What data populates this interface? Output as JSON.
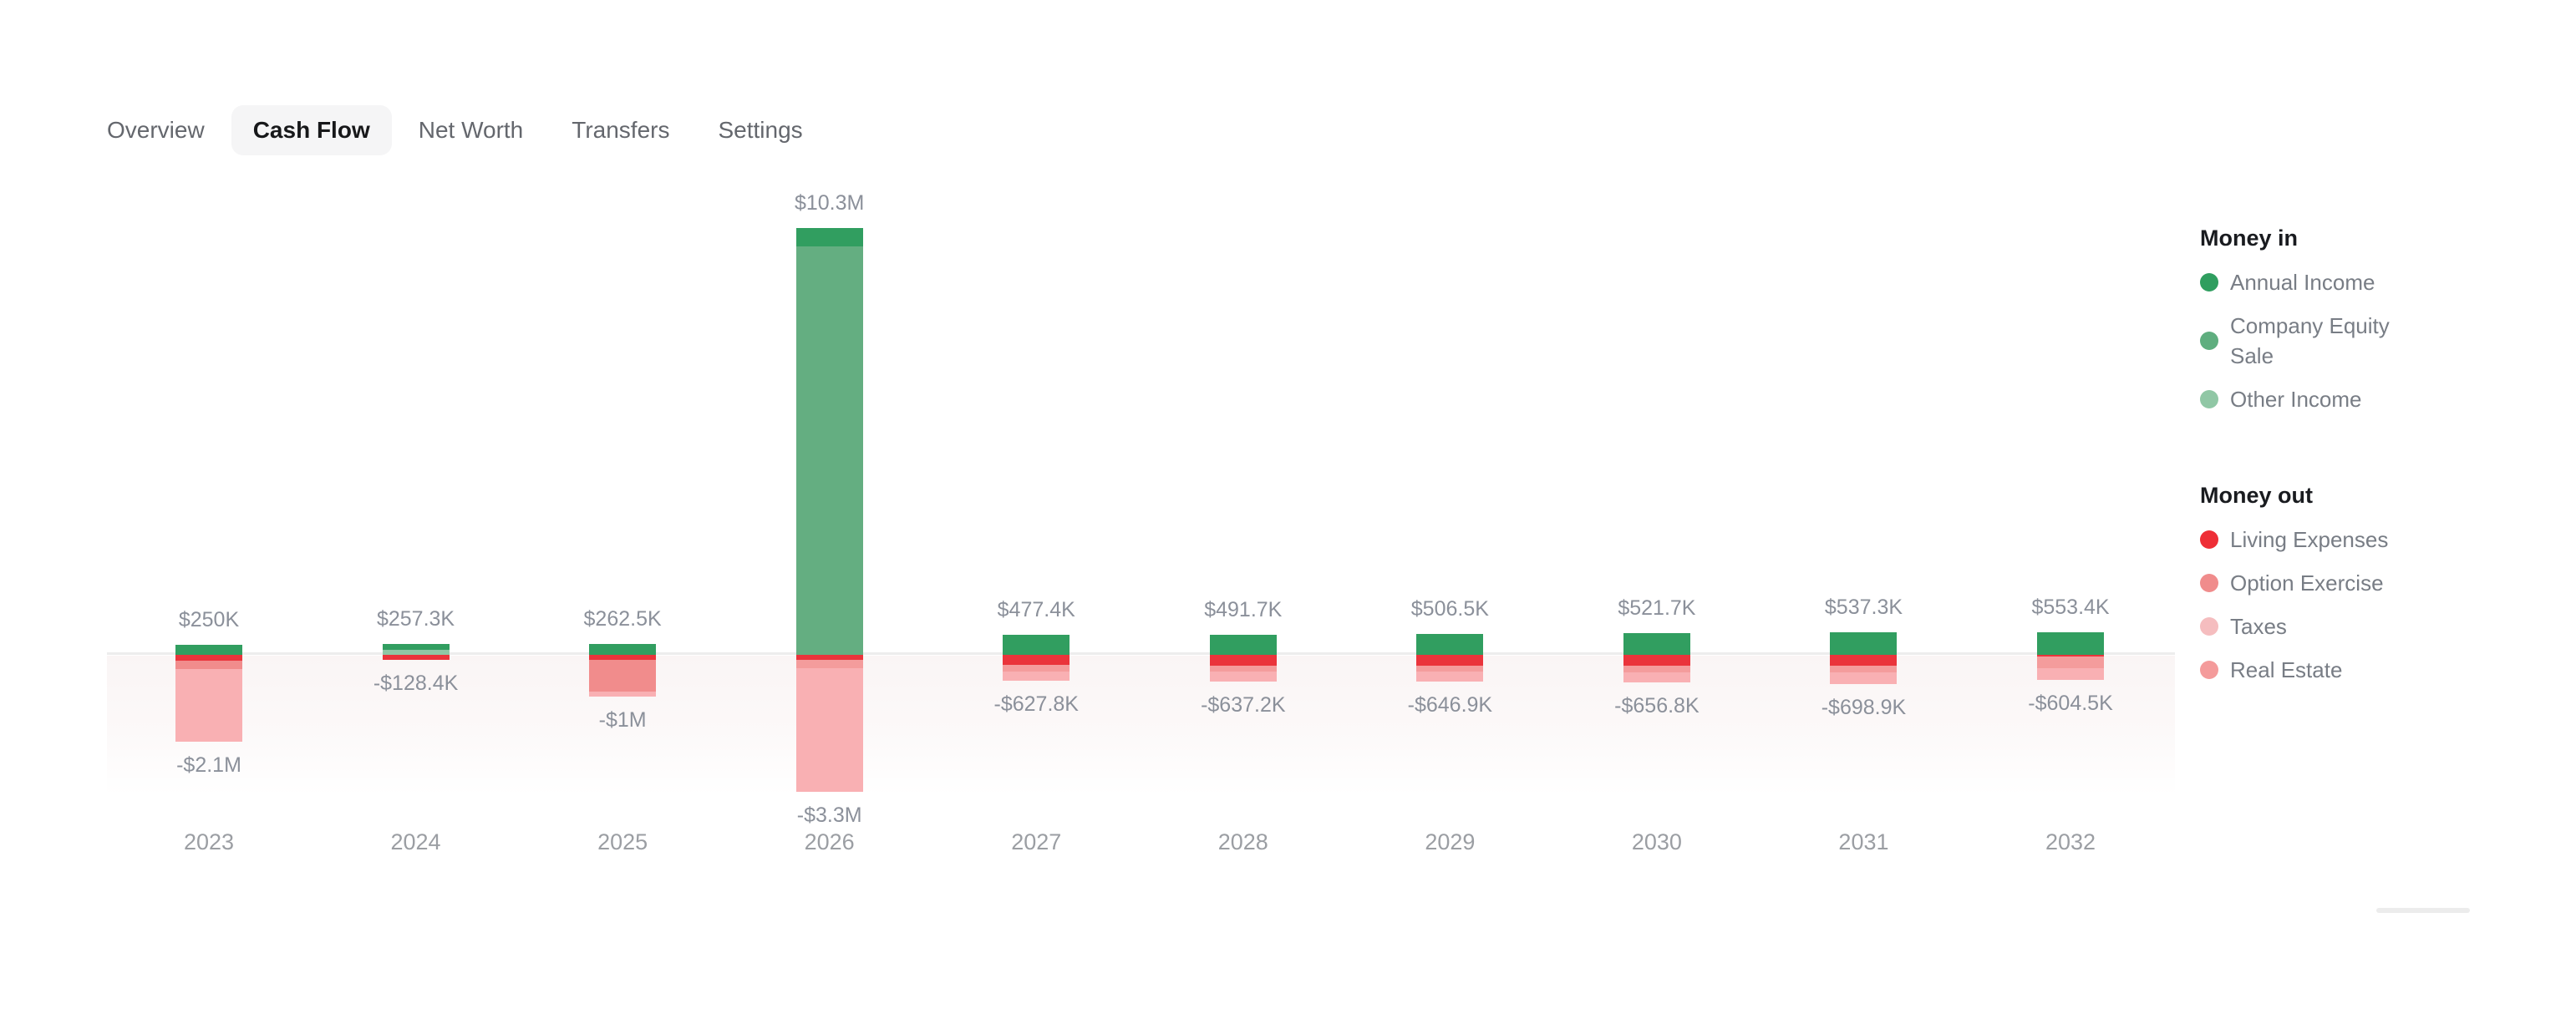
{
  "tabs": {
    "items": [
      {
        "id": "overview",
        "label": "Overview",
        "active": false
      },
      {
        "id": "cash-flow",
        "label": "Cash Flow",
        "active": true
      },
      {
        "id": "net-worth",
        "label": "Net Worth",
        "active": false
      },
      {
        "id": "transfers",
        "label": "Transfers",
        "active": false
      },
      {
        "id": "settings",
        "label": "Settings",
        "active": false
      }
    ]
  },
  "chart_data": {
    "type": "bar",
    "subtype": "diverging-stacked",
    "unit": "USD (values in thousands)",
    "grid": "off",
    "x": [
      "2023",
      "2024",
      "2025",
      "2026",
      "2027",
      "2028",
      "2029",
      "2030",
      "2031",
      "2032"
    ],
    "series_in": [
      "Annual Income",
      "Company Equity Sale",
      "Other Income"
    ],
    "series_out": [
      "Living Expenses",
      "Option Exercise",
      "Real Estate",
      "Taxes"
    ],
    "series_colors": {
      "annual_income": "#319e60",
      "company_equity_sale": "#64ae81",
      "other_income": "#8fc7a5",
      "living_expenses": "#ea343b",
      "option_exercise": "#f18c8c",
      "taxes": "#f9b0b3",
      "real_estate": "#f49c9c"
    },
    "years": [
      {
        "year": "2023",
        "in_label": "$250K",
        "out_label": "-$2.1M",
        "in": [
          {
            "series": "annual_income",
            "value_k": 250
          }
        ],
        "out": [
          {
            "series": "living_expenses",
            "value_k": 140
          },
          {
            "series": "option_exercise",
            "value_k": 200
          },
          {
            "series": "taxes",
            "value_k": 1760
          }
        ]
      },
      {
        "year": "2024",
        "in_label": "$257.3K",
        "out_label": "-$128.4K",
        "in": [
          {
            "series": "annual_income",
            "value_k": 130
          },
          {
            "series": "other_income",
            "value_k": 127.3
          }
        ],
        "out": [
          {
            "series": "living_expenses",
            "value_k": 128.4
          }
        ]
      },
      {
        "year": "2025",
        "in_label": "$262.5K",
        "out_label": "-$1M",
        "in": [
          {
            "series": "annual_income",
            "value_k": 262.5
          }
        ],
        "out": [
          {
            "series": "living_expenses",
            "value_k": 115
          },
          {
            "series": "option_exercise",
            "value_k": 765
          },
          {
            "series": "taxes",
            "value_k": 120
          }
        ]
      },
      {
        "year": "2026",
        "in_label": "$10.3M",
        "out_label": "-$3.3M",
        "in": [
          {
            "series": "annual_income",
            "value_k": 440
          },
          {
            "series": "company_equity_sale",
            "value_k": 9860
          }
        ],
        "out": [
          {
            "series": "living_expenses",
            "value_k": 120
          },
          {
            "series": "real_estate",
            "value_k": 200
          },
          {
            "series": "taxes",
            "value_k": 2980
          }
        ]
      },
      {
        "year": "2027",
        "in_label": "$477.4K",
        "out_label": "-$627.8K",
        "in": [
          {
            "series": "annual_income",
            "value_k": 477.4
          }
        ],
        "out": [
          {
            "series": "living_expenses",
            "value_k": 250
          },
          {
            "series": "real_estate",
            "value_k": 150
          },
          {
            "series": "taxes",
            "value_k": 227.8
          }
        ]
      },
      {
        "year": "2028",
        "in_label": "$491.7K",
        "out_label": "-$637.2K",
        "in": [
          {
            "series": "annual_income",
            "value_k": 491.7
          }
        ],
        "out": [
          {
            "series": "living_expenses",
            "value_k": 255
          },
          {
            "series": "real_estate",
            "value_k": 150
          },
          {
            "series": "taxes",
            "value_k": 232.2
          }
        ]
      },
      {
        "year": "2029",
        "in_label": "$506.5K",
        "out_label": "-$646.9K",
        "in": [
          {
            "series": "annual_income",
            "value_k": 506.5
          }
        ],
        "out": [
          {
            "series": "living_expenses",
            "value_k": 260
          },
          {
            "series": "real_estate",
            "value_k": 150
          },
          {
            "series": "taxes",
            "value_k": 236.9
          }
        ]
      },
      {
        "year": "2030",
        "in_label": "$521.7K",
        "out_label": "-$656.8K",
        "in": [
          {
            "series": "annual_income",
            "value_k": 521.7
          }
        ],
        "out": [
          {
            "series": "living_expenses",
            "value_k": 265
          },
          {
            "series": "real_estate",
            "value_k": 150
          },
          {
            "series": "taxes",
            "value_k": 241.8
          }
        ]
      },
      {
        "year": "2031",
        "in_label": "$537.3K",
        "out_label": "-$698.9K",
        "in": [
          {
            "series": "annual_income",
            "value_k": 537.3
          }
        ],
        "out": [
          {
            "series": "living_expenses",
            "value_k": 270
          },
          {
            "series": "real_estate",
            "value_k": 150
          },
          {
            "series": "taxes",
            "value_k": 278.9
          }
        ]
      },
      {
        "year": "2032",
        "in_label": "$553.4K",
        "out_label": "-$604.5K",
        "in": [
          {
            "series": "annual_income",
            "value_k": 553.4
          }
        ],
        "out": [
          {
            "series": "living_expenses",
            "value_k": 45
          },
          {
            "series": "real_estate",
            "value_k": 280
          },
          {
            "series": "taxes",
            "value_k": 279.5
          }
        ]
      }
    ]
  },
  "legend": {
    "money_in": {
      "title": "Money in",
      "items": [
        {
          "label": "Annual Income",
          "series": "annual_income",
          "color": "#2f9e5f"
        },
        {
          "label": "Company Equity Sale",
          "series": "company_equity_sale",
          "color": "#5fae7f"
        },
        {
          "label": "Other Income",
          "series": "other_income",
          "color": "#90c7a5"
        }
      ]
    },
    "money_out": {
      "title": "Money out",
      "items": [
        {
          "label": "Living Expenses",
          "series": "living_expenses",
          "color": "#ee2e36"
        },
        {
          "label": "Option Exercise",
          "series": "option_exercise",
          "color": "#f08c8c"
        },
        {
          "label": "Taxes",
          "series": "taxes",
          "color": "#f5bdbf"
        },
        {
          "label": "Real Estate",
          "series": "real_estate",
          "color": "#f49b9b"
        }
      ]
    }
  }
}
